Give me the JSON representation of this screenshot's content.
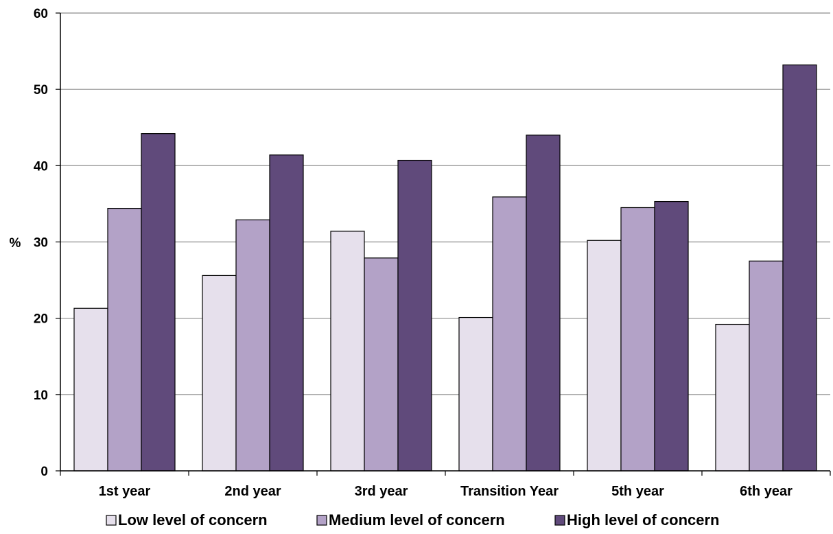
{
  "chart_data": {
    "type": "bar",
    "categories": [
      "1st year",
      "2nd year",
      "3rd year",
      "Transition Year",
      "5th year",
      "6th year"
    ],
    "series": [
      {
        "name": "Low level of concern",
        "color": "#e6e0ec",
        "values": [
          21.3,
          25.6,
          31.4,
          20.1,
          30.2,
          19.2
        ]
      },
      {
        "name": "Medium level of concern",
        "color": "#b3a2c7",
        "values": [
          34.4,
          32.9,
          27.9,
          35.9,
          34.5,
          27.5
        ]
      },
      {
        "name": "High level of concern",
        "color": "#604a7b",
        "values": [
          44.2,
          41.4,
          40.7,
          44.0,
          35.3,
          53.2
        ]
      }
    ],
    "ylabel": "%",
    "ylim": [
      0,
      60
    ],
    "yticks": [
      0,
      10,
      20,
      30,
      40,
      50,
      60
    ],
    "grid": true,
    "legend_position": "bottom"
  }
}
